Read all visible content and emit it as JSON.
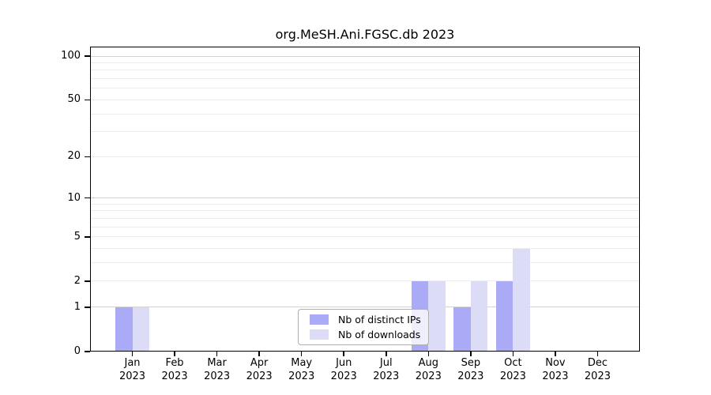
{
  "title": "org.MeSH.Ani.FGSC.db 2023",
  "chart_data": {
    "type": "bar",
    "title": "org.MeSH.Ani.FGSC.db 2023",
    "categories": [
      "Jan 2023",
      "Feb 2023",
      "Mar 2023",
      "Apr 2023",
      "May 2023",
      "Jun 2023",
      "Jul 2023",
      "Aug 2023",
      "Sep 2023",
      "Oct 2023",
      "Nov 2023",
      "Dec 2023"
    ],
    "series": [
      {
        "name": "Nb of distinct IPs",
        "color": "#aaaaf6",
        "values": [
          1,
          0,
          0,
          0,
          0,
          0,
          0,
          2,
          1,
          2,
          0,
          0
        ]
      },
      {
        "name": "Nb of downloads",
        "color": "#dcdcf6",
        "values": [
          1,
          0,
          0,
          0,
          0,
          0,
          0,
          2,
          2,
          4,
          0,
          0
        ]
      }
    ],
    "y_axis": {
      "scale": "log1p",
      "ylim": [
        0,
        100
      ],
      "ticks": [
        100,
        50,
        20,
        10,
        5,
        2,
        1,
        0
      ],
      "minor_gridlines": [
        2,
        3,
        4,
        5,
        6,
        7,
        8,
        9,
        20,
        30,
        40,
        50,
        60,
        70,
        80,
        90
      ],
      "major_gridlines": [
        1,
        10,
        100
      ]
    },
    "legend": {
      "position": "bottom-center",
      "entries": [
        "Nb of distinct IPs",
        "Nb of downloads"
      ]
    },
    "colors": {
      "grid_minor": "#ededed",
      "grid_major": "#d2d2d2",
      "axis": "#000000",
      "background": "#ffffff"
    }
  }
}
